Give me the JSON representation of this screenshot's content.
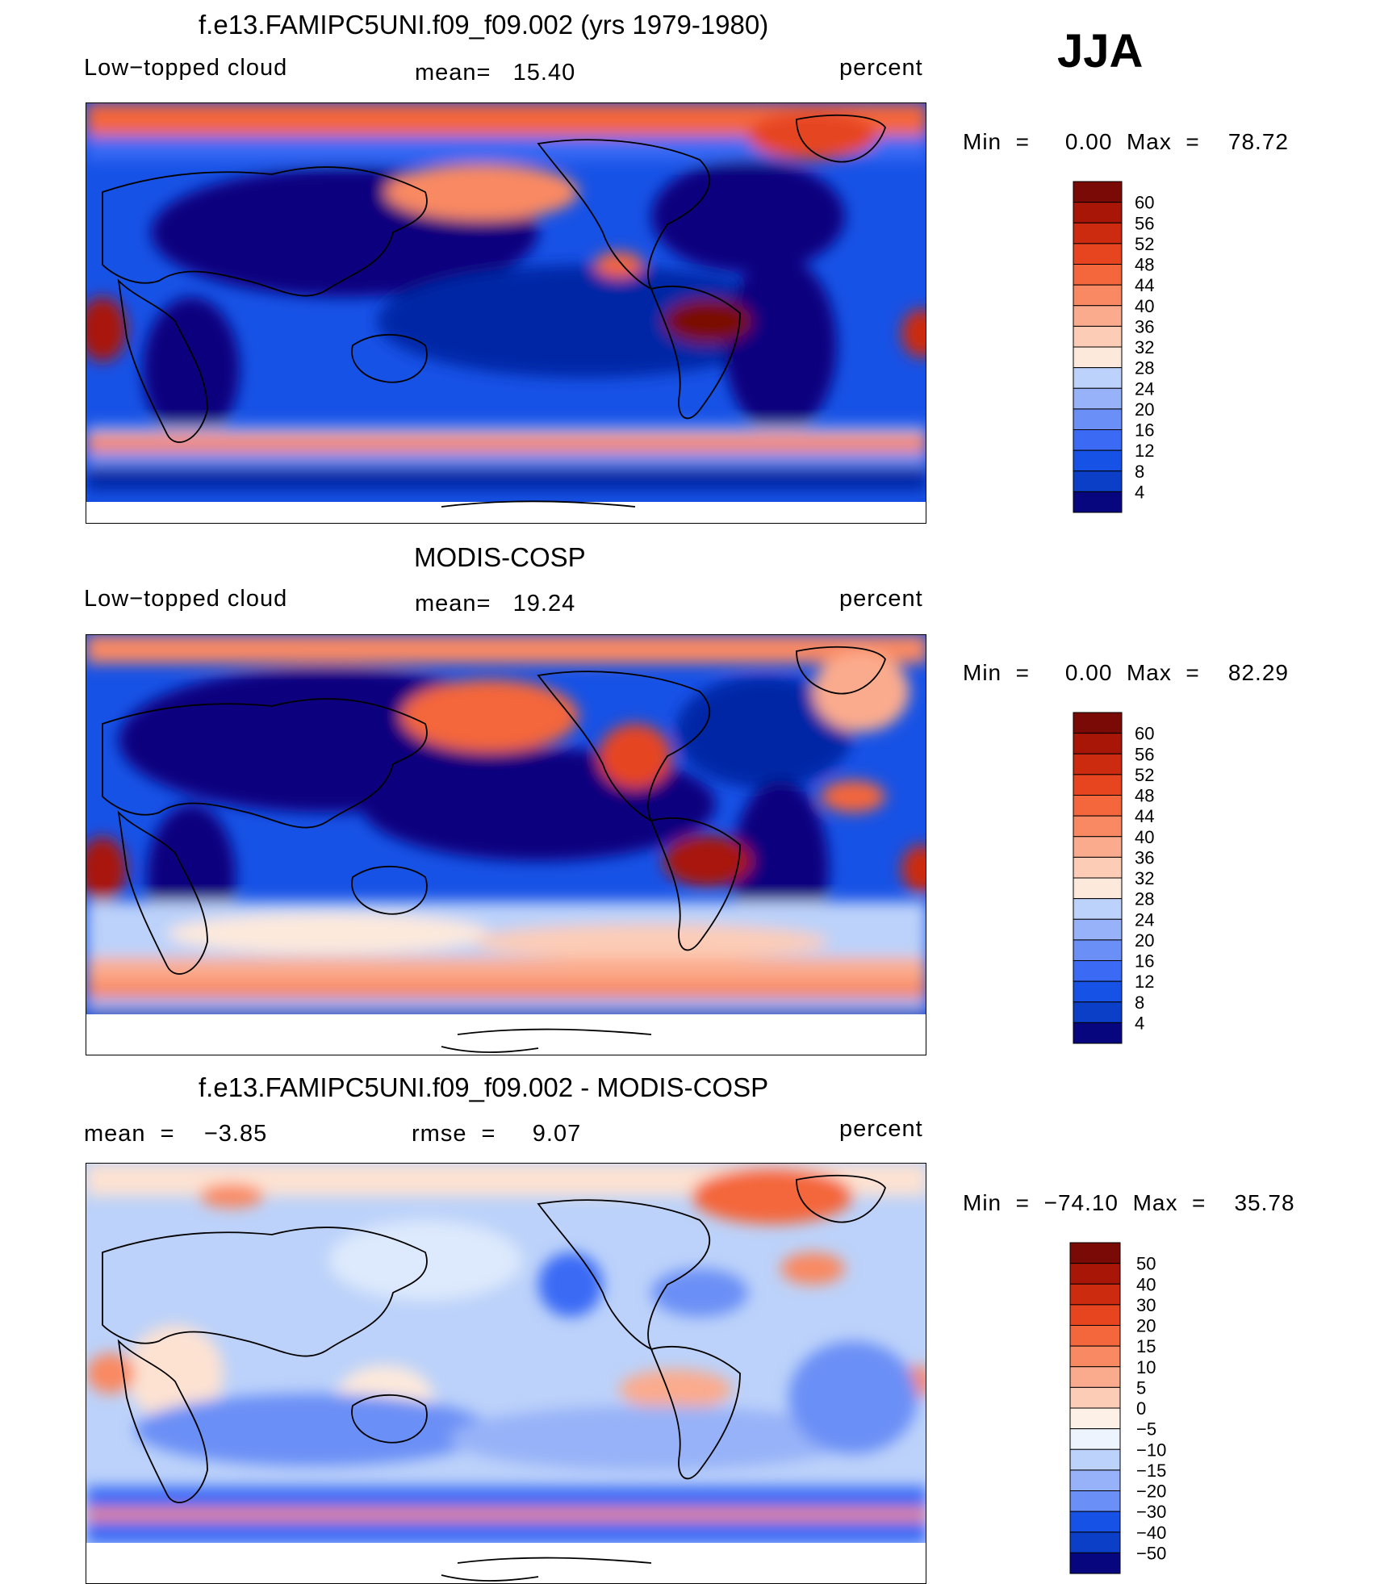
{
  "season": "JJA",
  "colors": {
    "levels18": [
      "#08067e",
      "#0626a6",
      "#0b3fc7",
      "#1752e6",
      "#3b6af5",
      "#6a8ff6",
      "#97b2f8",
      "#bcd2fa",
      "#dde9fc",
      "#fde9dc",
      "#fcccb6",
      "#fbab8d",
      "#f98962",
      "#f4663b",
      "#e64520",
      "#cc2b10",
      "#a81608",
      "#7a0a06"
    ],
    "levels20": [
      "#08067e",
      "#0626a6",
      "#0b3fc7",
      "#1752e6",
      "#3b6af5",
      "#6a8ff6",
      "#97b2f8",
      "#bcd2fa",
      "#dde9fc",
      "#eef4fe",
      "#fdf0e6",
      "#fde2d2",
      "#fcccb6",
      "#fbab8d",
      "#f98962",
      "#f4663b",
      "#e64520",
      "#cc2b10",
      "#a81608",
      "#7a0a06"
    ]
  },
  "chart_data": [
    {
      "type": "heatmap",
      "title": "f.e13.FAMIPC5UNI.f09_f09.002 (yrs 1979-1980)",
      "left_label": "Low−topped cloud",
      "center_label": "mean=   15.40",
      "right_label": "percent",
      "minmax_label": "Min  =     0.00  Max  =    78.72",
      "min": 0.0,
      "max": 78.72,
      "mean": 15.4,
      "units": "percent",
      "colorbar_ticks": [
        "60",
        "56",
        "52",
        "48",
        "44",
        "40",
        "36",
        "32",
        "28",
        "24",
        "20",
        "16",
        "12",
        "8",
        "4"
      ]
    },
    {
      "type": "heatmap",
      "title": "MODIS-COSP",
      "left_label": "Low−topped cloud",
      "center_label": "mean=   19.24",
      "right_label": "percent",
      "minmax_label": "Min  =     0.00  Max  =    82.29",
      "min": 0.0,
      "max": 82.29,
      "mean": 19.24,
      "units": "percent",
      "colorbar_ticks": [
        "60",
        "56",
        "52",
        "48",
        "44",
        "40",
        "36",
        "32",
        "28",
        "24",
        "20",
        "16",
        "12",
        "8",
        "4"
      ]
    },
    {
      "type": "heatmap",
      "title": "f.e13.FAMIPC5UNI.f09_f09.002 - MODIS-COSP",
      "left_label": "mean  =    −3.85",
      "center_label": "rmse  =     9.07",
      "right_label": "percent",
      "minmax_label": "Min  =  −74.10  Max  =    35.78",
      "min": -74.1,
      "max": 35.78,
      "mean": -3.85,
      "rmse": 9.07,
      "units": "percent",
      "colorbar_ticks": [
        "50",
        "40",
        "30",
        "20",
        "15",
        "10",
        "5",
        "0",
        "−5",
        "−10",
        "−15",
        "−20",
        "−30",
        "−40",
        "−50"
      ]
    }
  ]
}
